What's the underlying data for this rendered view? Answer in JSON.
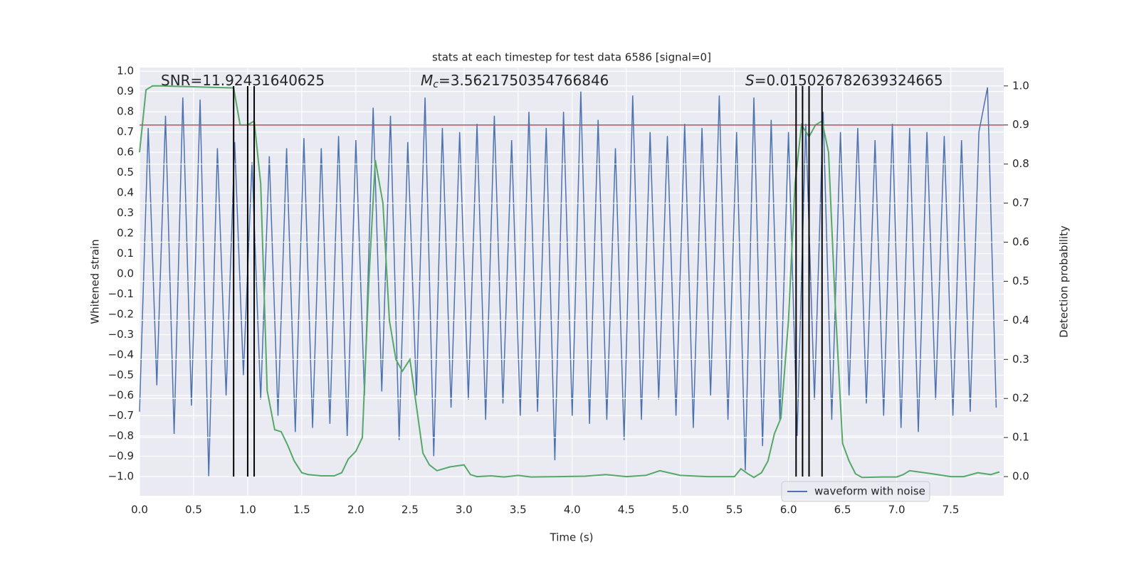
{
  "chart_data": {
    "type": "line",
    "title": "stats at each timestep for test data 6586 [signal=0]",
    "xlabel": "Time (s)",
    "ylabel": "Whitened strain",
    "y2label": "Detection probability",
    "annotations": [
      {
        "text": "SNR=11.92431640625"
      },
      {
        "italic": "M",
        "sub": "c",
        "text": "=3.5621750354766846"
      },
      {
        "italic": "S",
        "text": "=0.015026782639324665"
      }
    ],
    "xlim": [
      0,
      7.99
    ],
    "ylim": [
      -1.095,
      1.018
    ],
    "y2lim": [
      -0.049,
      1.047
    ],
    "xticks": [
      {
        "value": 0,
        "label": "0.0"
      },
      {
        "value": 0.5,
        "label": "0.5"
      },
      {
        "value": 1,
        "label": "1.0"
      },
      {
        "value": 1.5,
        "label": "1.5"
      },
      {
        "value": 2,
        "label": "2.0"
      },
      {
        "value": 2.5,
        "label": "2.5"
      },
      {
        "value": 3,
        "label": "3.0"
      },
      {
        "value": 3.5,
        "label": "3.5"
      },
      {
        "value": 4,
        "label": "4.0"
      },
      {
        "value": 4.5,
        "label": "4.5"
      },
      {
        "value": 5,
        "label": "5.0"
      },
      {
        "value": 5.5,
        "label": "5.5"
      },
      {
        "value": 6,
        "label": "6.0"
      },
      {
        "value": 6.5,
        "label": "6.5"
      },
      {
        "value": 7,
        "label": "7.0"
      },
      {
        "value": 7.5,
        "label": "7.5"
      }
    ],
    "yticks": [
      {
        "value": -1,
        "label": "−1.0"
      },
      {
        "value": -0.9,
        "label": "−0.9"
      },
      {
        "value": -0.8,
        "label": "−0.8"
      },
      {
        "value": -0.7,
        "label": "−0.7"
      },
      {
        "value": -0.6,
        "label": "−0.6"
      },
      {
        "value": -0.5,
        "label": "−0.5"
      },
      {
        "value": -0.4,
        "label": "−0.4"
      },
      {
        "value": -0.3,
        "label": "−0.3"
      },
      {
        "value": -0.2,
        "label": "−0.2"
      },
      {
        "value": -0.1,
        "label": "−0.1"
      },
      {
        "value": 0,
        "label": "0.0"
      },
      0.1,
      0.2,
      0.3,
      0.4,
      0.5,
      0.6,
      0.7,
      0.8,
      0.9,
      {
        "value": 1,
        "label": "1.0"
      }
    ],
    "y2ticks": [
      {
        "value": 0,
        "label": "0.0"
      },
      0.1,
      0.2,
      0.3,
      0.4,
      0.5,
      0.6,
      0.7,
      0.8,
      0.9,
      {
        "value": 1,
        "label": "1.0"
      }
    ],
    "grid": true,
    "legend": "lower right",
    "series": [
      {
        "name": "waveform with noise",
        "color": "#4c72b0",
        "x": [
          0,
          0.08,
          0.16,
          0.24,
          0.32,
          0.4,
          0.48,
          0.56,
          0.64,
          0.72,
          0.8,
          0.88,
          0.96,
          1.04,
          1.12,
          1.2,
          1.28,
          1.36,
          1.44,
          1.52,
          1.6,
          1.68,
          1.76,
          1.84,
          1.92,
          2,
          2.08,
          2.16,
          2.24,
          2.32,
          2.4,
          2.48,
          2.56,
          2.64,
          2.72,
          2.8,
          2.88,
          2.96,
          3.04,
          3.12,
          3.2,
          3.28,
          3.36,
          3.44,
          3.52,
          3.6,
          3.68,
          3.76,
          3.84,
          3.92,
          4,
          4.08,
          4.16,
          4.24,
          4.32,
          4.4,
          4.48,
          4.56,
          4.64,
          4.72,
          4.8,
          4.88,
          4.96,
          5.04,
          5.12,
          5.2,
          5.28,
          5.36,
          5.44,
          5.52,
          5.6,
          5.68,
          5.76,
          5.84,
          5.92,
          6,
          6.08,
          6.16,
          6.24,
          6.32,
          6.4,
          6.48,
          6.56,
          6.64,
          6.72,
          6.8,
          6.88,
          6.96,
          7.04,
          7.12,
          7.2,
          7.28,
          7.36,
          7.44,
          7.52,
          7.6,
          7.68,
          7.76,
          7.84,
          7.92
        ],
        "values": [
          -0.68,
          0.72,
          -0.55,
          0.78,
          -0.79,
          0.87,
          -0.65,
          0.86,
          -1.0,
          0.62,
          -0.6,
          0.65,
          -0.5,
          0.55,
          -0.62,
          0.58,
          -0.7,
          0.62,
          -0.78,
          0.67,
          -0.76,
          0.62,
          -0.74,
          0.68,
          -0.8,
          0.66,
          -0.6,
          0.82,
          -0.58,
          0.78,
          -0.82,
          0.65,
          -0.6,
          0.87,
          -0.9,
          0.72,
          -0.66,
          0.7,
          -0.62,
          0.74,
          -0.72,
          0.78,
          -0.64,
          0.66,
          -0.7,
          0.8,
          -0.68,
          0.72,
          -0.92,
          0.8,
          -0.7,
          0.9,
          -0.74,
          0.76,
          -0.72,
          0.62,
          -0.82,
          0.88,
          -0.72,
          0.7,
          -0.62,
          0.68,
          -0.7,
          0.74,
          -0.76,
          0.72,
          -0.6,
          0.88,
          -0.72,
          0.7,
          -0.97,
          0.87,
          -0.85,
          0.76,
          -0.72,
          0.7,
          -0.8,
          0.74,
          -0.62,
          0.8,
          -0.72,
          0.7,
          -0.6,
          0.72,
          -0.64,
          0.66,
          -0.7,
          0.74,
          -0.76,
          0.72,
          -0.78,
          0.7,
          -0.62,
          0.68,
          -0.7,
          0.66,
          -0.68,
          0.7,
          0.92,
          -0.66
        ]
      },
      {
        "color": "#55a868",
        "axis": "y2",
        "x": [
          0,
          0.06,
          0.12,
          0.2,
          0.87,
          0.93,
          1.0,
          1.06,
          1.12,
          1.18,
          1.25,
          1.31,
          1.37,
          1.43,
          1.5,
          1.56,
          1.68,
          1.8,
          1.87,
          1.93,
          2.0,
          2.06,
          2.12,
          2.18,
          2.25,
          2.31,
          2.37,
          2.43,
          2.5,
          2.56,
          2.62,
          2.68,
          2.75,
          2.81,
          2.87,
          3.0,
          3.06,
          3.12,
          3.25,
          3.37,
          3.5,
          3.62,
          3.87,
          4.12,
          4.31,
          4.5,
          4.68,
          4.81,
          5.0,
          5.25,
          5.5,
          5.56,
          5.62,
          5.68,
          5.75,
          5.81,
          5.87,
          5.93,
          6.0,
          6.06,
          6.12,
          6.19,
          6.25,
          6.31,
          6.37,
          6.43,
          6.5,
          6.56,
          6.62,
          6.68,
          6.87,
          7.0,
          7.06,
          7.12,
          7.31,
          7.5,
          7.62,
          7.75,
          7.87,
          7.95
        ],
        "values": [
          0.83,
          0.99,
          1.0,
          1.0,
          0.995,
          0.9,
          0.9,
          0.91,
          0.75,
          0.22,
          0.12,
          0.115,
          0.08,
          0.04,
          0.01,
          0.005,
          0.002,
          0.002,
          0.01,
          0.045,
          0.065,
          0.1,
          0.5,
          0.81,
          0.7,
          0.4,
          0.3,
          0.27,
          0.3,
          0.18,
          0.06,
          0.03,
          0.015,
          0.02,
          0.025,
          0.03,
          0.005,
          0.0,
          0.002,
          -0.001,
          0.003,
          -0.001,
          0.0,
          0.001,
          0.005,
          0.0,
          0.003,
          0.015,
          0.003,
          0.0,
          0.0,
          0.02,
          0.008,
          -0.002,
          0.01,
          0.04,
          0.11,
          0.15,
          0.4,
          0.75,
          0.9,
          0.87,
          0.9,
          0.91,
          0.83,
          0.45,
          0.085,
          0.04,
          0.007,
          -0.002,
          -0.001,
          -0.001,
          0.005,
          0.015,
          0.008,
          0.0,
          0.0,
          0.01,
          0.005,
          0.012
        ]
      }
    ],
    "threshold": {
      "value": 0.9,
      "axis": "y2",
      "color": "#c44e52"
    },
    "vlines": {
      "x": [
        0.87,
        1.0,
        1.06,
        6.07,
        6.13,
        6.19,
        6.31
      ],
      "color": "#000000"
    }
  }
}
